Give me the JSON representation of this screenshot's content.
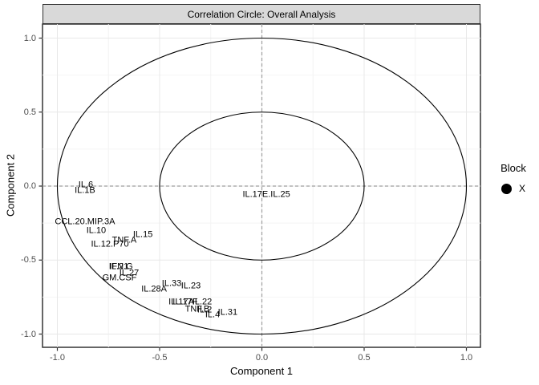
{
  "window": {
    "strip_title": "Correlation Circle: Overall Analysis"
  },
  "colors": {
    "strip_fill": "#D9D9D9",
    "strip_border": "#2F2F2F",
    "panel_border": "#333333",
    "grid_major": "#E8E8E8",
    "grid_minor": "#F4F4F4",
    "zero_line_dashed": "#9E9E9E",
    "circle_stroke": "#000000",
    "tick_mark": "#333333",
    "tick_label": "#4D4D4D",
    "variable_label": "#000000",
    "legend_marker": "#000000"
  },
  "chart_data": {
    "type": "scatter",
    "title": "Correlation Circle: Overall Analysis",
    "xlabel": "Component 1",
    "ylabel": "Component 2",
    "xlim": [
      -1.08,
      1.07
    ],
    "ylim": [
      -1.09,
      1.09
    ],
    "x_ticks": [
      -1.0,
      -0.5,
      0.0,
      0.5,
      1.0
    ],
    "x_tick_labels": [
      "-1.0",
      "-0.5",
      "0.0",
      "0.5",
      "1.0"
    ],
    "y_ticks": [
      -1.0,
      -0.5,
      0.0,
      0.5,
      1.0
    ],
    "y_tick_labels": [
      "-1.0",
      "-0.5",
      "0.0",
      "0.5",
      "1.0"
    ],
    "grid": true,
    "reference_circles": [
      1.0,
      0.5
    ],
    "zero_lines_dashed": true,
    "legend": {
      "title": "Block",
      "position": "right",
      "entries": [
        {
          "label": "X",
          "marker": "filled-circle",
          "color": "#000000"
        }
      ]
    },
    "points": [
      {
        "label": "IL.6",
        "x": -0.861,
        "y": 0.005
      },
      {
        "label": "IL.1B",
        "x": -0.865,
        "y": -0.035
      },
      {
        "label": "CCL.20.MIP.3A",
        "x": -0.865,
        "y": -0.244
      },
      {
        "label": "IL.10",
        "x": -0.81,
        "y": -0.301
      },
      {
        "label": "IL.15",
        "x": -0.582,
        "y": -0.331
      },
      {
        "label": "TNF.A",
        "x": -0.673,
        "y": -0.371
      },
      {
        "label": "IL.12.P70",
        "x": -0.743,
        "y": -0.393
      },
      {
        "label": "IL.21",
        "x": -0.7,
        "y": -0.547
      },
      {
        "label": "IFN.G",
        "x": -0.688,
        "y": -0.55
      },
      {
        "label": "IL.27",
        "x": -0.649,
        "y": -0.591
      },
      {
        "label": "GM.CSF",
        "x": -0.696,
        "y": -0.621
      },
      {
        "label": "IL.33",
        "x": -0.441,
        "y": -0.661
      },
      {
        "label": "IL.23",
        "x": -0.347,
        "y": -0.68
      },
      {
        "label": "IL.28A",
        "x": -0.527,
        "y": -0.699
      },
      {
        "label": "IL.17A",
        "x": -0.394,
        "y": -0.786
      },
      {
        "label": "IL.17F",
        "x": -0.375,
        "y": -0.786
      },
      {
        "label": "IL.22",
        "x": -0.292,
        "y": -0.786
      },
      {
        "label": "TNF.B",
        "x": -0.316,
        "y": -0.837
      },
      {
        "label": "IL.2",
        "x": -0.28,
        "y": -0.84
      },
      {
        "label": "IL.4",
        "x": -0.241,
        "y": -0.873
      },
      {
        "label": "IL.31",
        "x": -0.167,
        "y": -0.854
      },
      {
        "label": "IL.17E.IL.25",
        "x": 0.022,
        "y": -0.06
      }
    ]
  }
}
